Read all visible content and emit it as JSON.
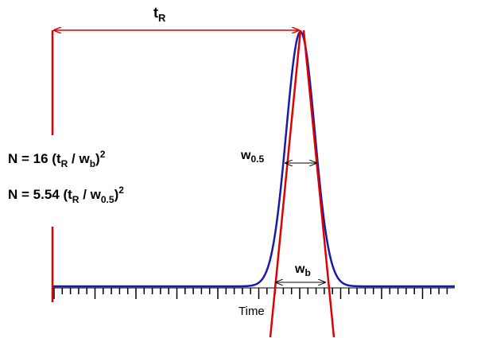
{
  "labels": {
    "retention_time": {
      "main": "t",
      "sub": "R"
    },
    "half_width": {
      "main": "w",
      "sub": "0.5"
    },
    "base_width": {
      "main": "w",
      "sub": "b"
    },
    "x_axis": "Time"
  },
  "equations": [
    {
      "parts": [
        {
          "text": "N = 16 (t"
        },
        {
          "sub": "R"
        },
        {
          "text": " / w"
        },
        {
          "sub": "b"
        },
        {
          "text": ")"
        },
        {
          "sup": "2"
        }
      ]
    },
    {
      "parts": [
        {
          "text": "N = 5.54 (t"
        },
        {
          "sub": "R"
        },
        {
          "text": " / w"
        },
        {
          "sub": "0.5"
        },
        {
          "text": ")"
        },
        {
          "sup": "2"
        }
      ]
    }
  ]
}
